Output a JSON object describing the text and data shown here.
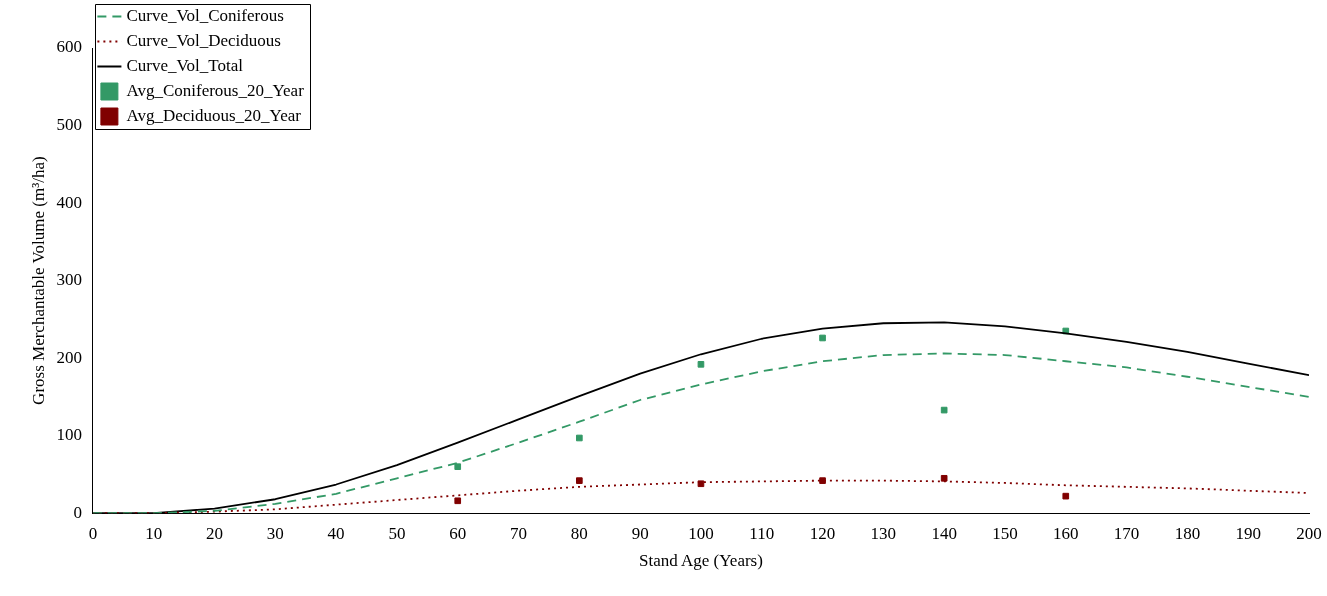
{
  "chart_data": {
    "type": "line",
    "xlabel": "Stand Age (Years)",
    "ylabel": "Gross Merchantable Volume (m³/ha)",
    "xlim": [
      0,
      200
    ],
    "xticks": [
      0,
      10,
      20,
      30,
      40,
      50,
      60,
      70,
      80,
      90,
      100,
      110,
      120,
      130,
      140,
      150,
      160,
      170,
      180,
      190,
      200
    ],
    "ylim": [
      0,
      600
    ],
    "yticks": [
      0,
      100,
      200,
      300,
      400,
      500,
      600
    ],
    "grid": false,
    "legend": "top left",
    "series": [
      {
        "name": "Curve_Vol_Coniferous",
        "type": "line",
        "line_style": "dashed",
        "marker": "none",
        "color": "#339966",
        "x": [
          0,
          10,
          20,
          30,
          40,
          50,
          60,
          70,
          80,
          90,
          100,
          110,
          120,
          130,
          140,
          150,
          160,
          170,
          180,
          190,
          200
        ],
        "values": [
          0,
          0,
          3,
          12,
          25,
          45,
          65,
          91,
          118,
          146,
          166,
          183,
          196,
          204,
          206,
          204,
          196,
          188,
          176,
          163,
          150
        ]
      },
      {
        "name": "Curve_Vol_Deciduous",
        "type": "line",
        "line_style": "dotted",
        "marker": "none",
        "color": "#800000",
        "x": [
          0,
          10,
          20,
          30,
          40,
          50,
          60,
          70,
          80,
          90,
          100,
          110,
          120,
          130,
          140,
          150,
          160,
          170,
          180,
          190,
          200
        ],
        "values": [
          0,
          0,
          2,
          5,
          11,
          17,
          23,
          29,
          34,
          37,
          40,
          41,
          42,
          42,
          41,
          39,
          36,
          34,
          32,
          29,
          26
        ]
      },
      {
        "name": "Curve_Vol_Total",
        "type": "line",
        "line_style": "solid",
        "marker": "none",
        "color": "#000000",
        "x": [
          0,
          10,
          20,
          30,
          40,
          50,
          60,
          70,
          80,
          90,
          100,
          110,
          120,
          130,
          140,
          150,
          160,
          170,
          180,
          190,
          200
        ],
        "values": [
          0,
          0,
          6,
          18,
          37,
          62,
          91,
          121,
          151,
          180,
          205,
          225,
          238,
          245,
          246,
          241,
          232,
          221,
          208,
          193,
          178
        ]
      },
      {
        "name": "Avg_Coniferous_20_Year",
        "type": "scatter",
        "marker": "square",
        "color": "#339966",
        "x": [
          60,
          80,
          100,
          120,
          140,
          160
        ],
        "values": [
          60,
          97,
          192,
          226,
          133,
          235
        ]
      },
      {
        "name": "Avg_Deciduous_20_Year",
        "type": "scatter",
        "marker": "square",
        "color": "#800000",
        "x": [
          60,
          80,
          100,
          120,
          140,
          160
        ],
        "values": [
          16,
          42,
          38,
          42,
          45,
          22
        ]
      }
    ]
  }
}
